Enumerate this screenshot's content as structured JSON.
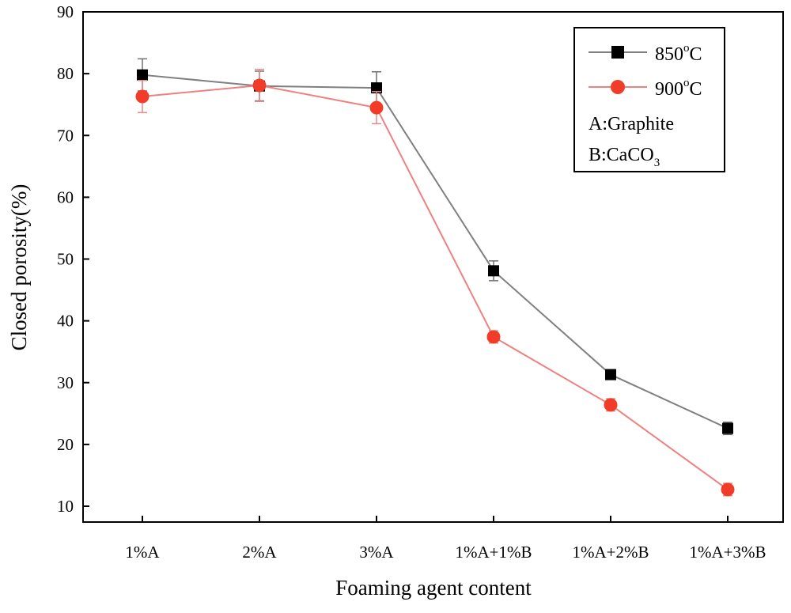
{
  "chart_data": {
    "type": "line",
    "title": "",
    "xlabel": "Foaming agent content",
    "ylabel": "Closed porosity(%)",
    "ylim": [
      10,
      90
    ],
    "yticks": [
      10,
      20,
      30,
      40,
      50,
      60,
      70,
      80,
      90
    ],
    "categories": [
      "1%A",
      "2%A",
      "3%A",
      "1%A+1%B",
      "1%A+2%B",
      "1%A+3%B"
    ],
    "series": [
      {
        "name": "850",
        "name_sup": "o",
        "name_suffix": "C",
        "color": "#808080",
        "marker": "square",
        "marker_color": "#000000",
        "values": [
          79.8,
          78.0,
          77.7,
          48.1,
          31.3,
          22.6
        ],
        "errors": [
          2.6,
          2.4,
          2.6,
          1.6,
          0.8,
          1.0
        ]
      },
      {
        "name": "900",
        "name_sup": "o",
        "name_suffix": "C",
        "color": "#f08080",
        "marker": "circle",
        "marker_color": "#f03c28",
        "values": [
          76.3,
          78.1,
          74.5,
          37.4,
          26.4,
          12.7
        ],
        "errors": [
          2.6,
          2.6,
          2.6,
          1.0,
          1.0,
          1.0
        ]
      }
    ],
    "legend_position": "top-right",
    "annotations": [
      {
        "text": "A:Graphite"
      },
      {
        "text": "B:CaCO",
        "sub": "3"
      }
    ],
    "grid": false
  }
}
